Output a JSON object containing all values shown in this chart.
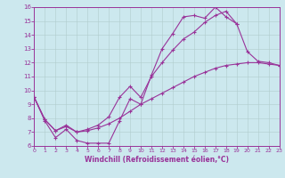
{
  "background_color": "#cce8ee",
  "line_color": "#993399",
  "grid_color": "#b0cccc",
  "xlabel": "Windchill (Refroidissement éolien,°C)",
  "xlim": [
    0,
    23
  ],
  "ylim": [
    6,
    16
  ],
  "xticks": [
    0,
    1,
    2,
    3,
    4,
    5,
    6,
    7,
    8,
    9,
    10,
    11,
    12,
    13,
    14,
    15,
    16,
    17,
    18,
    19,
    20,
    21,
    22,
    23
  ],
  "yticks": [
    6,
    7,
    8,
    9,
    10,
    11,
    12,
    13,
    14,
    15,
    16
  ],
  "curve1_x": [
    0,
    1,
    2,
    3,
    4,
    5,
    6,
    7,
    8,
    9,
    10,
    11,
    12,
    13,
    14,
    15,
    16,
    17,
    18,
    19
  ],
  "curve1_y": [
    9.5,
    7.8,
    6.6,
    7.2,
    6.4,
    6.2,
    6.2,
    6.2,
    7.8,
    9.4,
    9.0,
    11.1,
    13.0,
    14.1,
    15.3,
    15.4,
    15.2,
    16.0,
    15.3,
    14.8
  ],
  "curve2_x": [
    0,
    1,
    2,
    3,
    4,
    5,
    6,
    7,
    8,
    9,
    10,
    11,
    12,
    13,
    14,
    15,
    16,
    17,
    18,
    19,
    20,
    21,
    22,
    23
  ],
  "curve2_y": [
    9.5,
    7.9,
    7.1,
    7.4,
    7.0,
    7.1,
    7.3,
    7.6,
    8.0,
    8.5,
    9.0,
    9.4,
    9.8,
    10.2,
    10.6,
    11.0,
    11.3,
    11.6,
    11.8,
    11.9,
    12.0,
    12.0,
    11.9,
    11.8
  ],
  "curve3_x": [
    0,
    1,
    2,
    3,
    4,
    5,
    6,
    7,
    8,
    9,
    10,
    11,
    12,
    13,
    14,
    15,
    16,
    17,
    18,
    19,
    20,
    21,
    22,
    23
  ],
  "curve3_y": [
    9.5,
    7.9,
    7.1,
    7.5,
    7.0,
    7.2,
    7.5,
    8.1,
    9.5,
    10.3,
    9.5,
    11.0,
    12.0,
    12.9,
    13.7,
    14.2,
    14.9,
    15.4,
    15.7,
    14.8,
    12.8,
    12.1,
    12.0,
    11.8
  ]
}
